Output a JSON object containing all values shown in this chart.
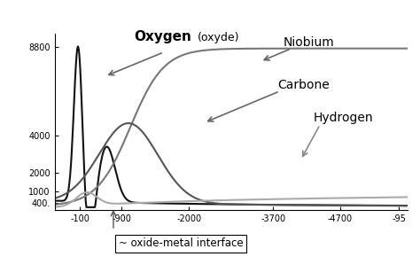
{
  "background_color": "#ffffff",
  "ylim": [
    0,
    9500
  ],
  "xlim": [
    0,
    420
  ],
  "yticks": [
    400,
    1000,
    2000,
    4000,
    8800
  ],
  "ytick_labels": [
    "400.",
    "1000",
    "2000",
    "4000",
    "8800"
  ],
  "xtick_positions": [
    30,
    80,
    160,
    260,
    340,
    410
  ],
  "xtick_labels": [
    "-100",
    "-900",
    "-2000",
    "-3700",
    "-4700",
    "-95"
  ],
  "oxygen_color": "#111111",
  "niobium_color": "#777777",
  "carbon_color": "#555555",
  "hydrogen_color": "#aaaaaa",
  "linewidth": 1.5,
  "arrow_color": "#666666",
  "interface_text": "~ oxide-metal interface"
}
